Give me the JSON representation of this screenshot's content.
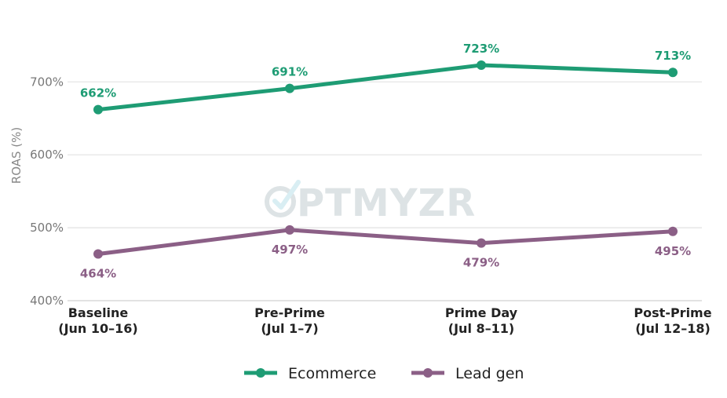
{
  "chart_data": {
    "type": "line",
    "categories": [
      "Baseline\n(Jun 10–16)",
      "Pre-Prime\n(Jul 1–7)",
      "Prime Day\n(Jul 8–11)",
      "Post-Prime\n(Jul 12–18)"
    ],
    "series": [
      {
        "name": "Ecommerce",
        "values": [
          662,
          691,
          723,
          713
        ],
        "labels": [
          "662%",
          "691%",
          "723%",
          "713%"
        ],
        "color": "#1e9c74",
        "label_position": "above"
      },
      {
        "name": "Lead gen",
        "values": [
          464,
          497,
          479,
          495
        ],
        "labels": [
          "464%",
          "497%",
          "479%",
          "495%"
        ],
        "color": "#8b5f86",
        "label_position": "below"
      }
    ],
    "title": "",
    "xlabel": "",
    "ylabel": "ROAS (%)",
    "ylim": [
      400,
      780
    ],
    "yticks": [
      400,
      500,
      600,
      700
    ],
    "ytick_labels": [
      "400%",
      "500%",
      "600%",
      "700%"
    ],
    "grid": "horizontal",
    "legend": "bottom-center"
  },
  "watermark": {
    "text": "PTMYZR",
    "icon": "optmyzr-logo-icon",
    "color": "#dde3e5"
  }
}
